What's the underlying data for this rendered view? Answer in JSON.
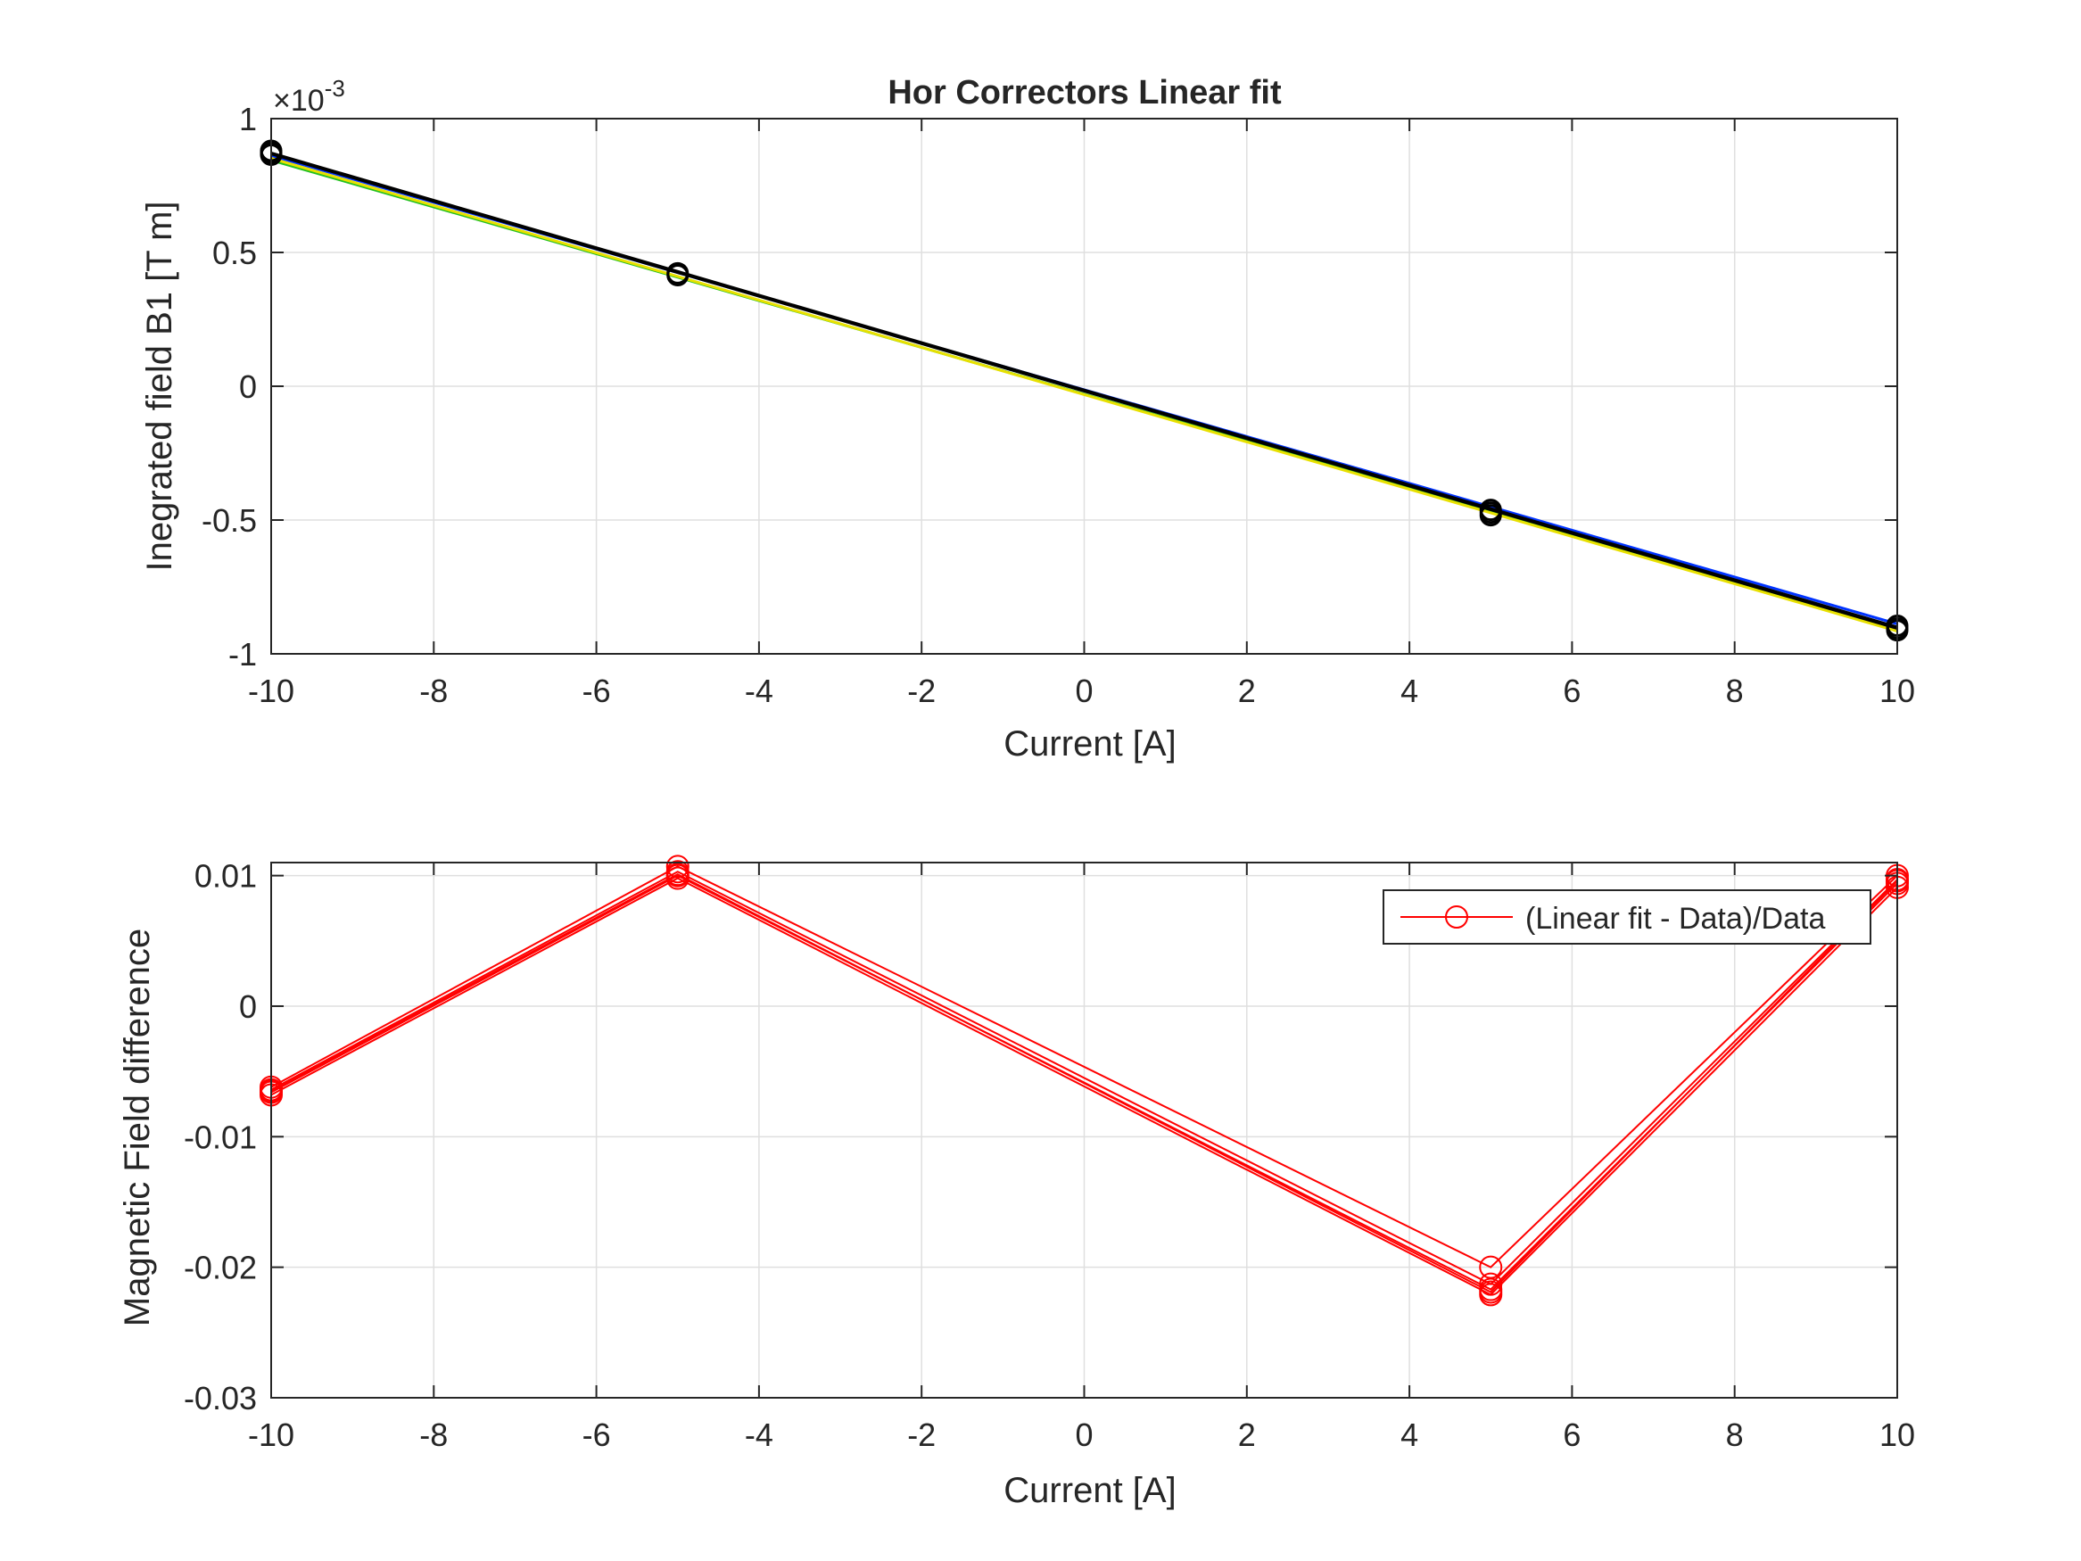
{
  "chart_data": [
    {
      "type": "line",
      "title": "Hor Correctors Linear fit",
      "xlabel": "Current [A]",
      "ylabel": "Inegrated field B1 [T m]",
      "y_exponent_label": "×10",
      "y_exponent_power": "-3",
      "xlim": [
        -10,
        10
      ],
      "ylim": [
        -1,
        1
      ],
      "xticks": [
        -10,
        -8,
        -6,
        -4,
        -2,
        0,
        2,
        4,
        6,
        8,
        10
      ],
      "xtick_labels": [
        "-10",
        "-8",
        "-6",
        "-4",
        "-2",
        "0",
        "2",
        "4",
        "6",
        "8",
        "10"
      ],
      "yticks": [
        -1,
        -0.5,
        0,
        0.5,
        1
      ],
      "ytick_labels": [
        "-1",
        "-0.5",
        "0",
        "0.5",
        "1"
      ],
      "grid": true,
      "fit_lines": [
        {
          "color": "#0033ff",
          "x": [
            -10,
            10
          ],
          "y": [
            0.862,
            -0.888
          ]
        },
        {
          "color": "#22c022",
          "x": [
            -10,
            10
          ],
          "y": [
            0.845,
            -0.905
          ]
        },
        {
          "color": "#e8e000",
          "x": [
            -10,
            10
          ],
          "y": [
            0.852,
            -0.915
          ]
        },
        {
          "color": "#000000",
          "x": [
            -10,
            10
          ],
          "y": [
            0.868,
            -0.905
          ]
        },
        {
          "color": "#000000",
          "x": [
            -10,
            10
          ],
          "y": [
            0.872,
            -0.9
          ]
        }
      ],
      "data_markers": {
        "color": "#000000",
        "x": [
          -10,
          -10,
          -10,
          -5,
          -5,
          5,
          5,
          5,
          10,
          10,
          10
        ],
        "y": [
          0.865,
          0.872,
          0.88,
          0.415,
          0.422,
          -0.462,
          -0.472,
          -0.482,
          -0.895,
          -0.905,
          -0.912
        ]
      }
    },
    {
      "type": "line",
      "title": "",
      "xlabel": "Current [A]",
      "ylabel": "Magnetic Field difference",
      "xlim": [
        -10,
        10
      ],
      "ylim": [
        -0.03,
        0.011
      ],
      "xticks": [
        -10,
        -8,
        -6,
        -4,
        -2,
        0,
        2,
        4,
        6,
        8,
        10
      ],
      "xtick_labels": [
        "-10",
        "-8",
        "-6",
        "-4",
        "-2",
        "0",
        "2",
        "4",
        "6",
        "8",
        "10"
      ],
      "yticks": [
        -0.03,
        -0.02,
        -0.01,
        0,
        0.01
      ],
      "ytick_labels": [
        "-0.03",
        "-0.02",
        "-0.01",
        "0",
        "0.01"
      ],
      "grid": true,
      "legend": {
        "entry": "(Linear fit - Data)/Data",
        "placement": "top-right"
      },
      "series_color": "#ff0000",
      "x": [
        -10,
        -5,
        5,
        10
      ],
      "series": [
        {
          "values": [
            -0.0062,
            0.0107,
            -0.02,
            0.01
          ]
        },
        {
          "values": [
            -0.0064,
            0.0103,
            -0.0213,
            0.0097
          ]
        },
        {
          "values": [
            -0.0066,
            0.01,
            -0.0217,
            0.0094
          ]
        },
        {
          "values": [
            -0.0068,
            0.0098,
            -0.0221,
            0.0091
          ]
        },
        {
          "values": [
            -0.0065,
            0.0101,
            -0.0219,
            0.0096
          ]
        }
      ]
    }
  ]
}
